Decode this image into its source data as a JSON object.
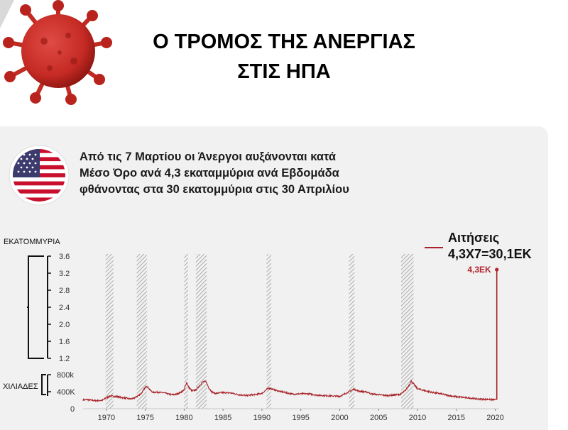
{
  "header": {
    "title_line1": "Ο ΤΡΟΜΟΣ ΤΗΣ ΑΝΕΡΓΙΑΣ",
    "title_line2": "ΣΤΙΣ ΗΠΑ"
  },
  "subtitle": {
    "line1": "Από τις 7 Μαρτίου οι Άνεργοι αυξάνονται κατά",
    "line2": "Μέσο Όρο ανά 4,3 εκαταμμύρια ανά Εβδομάδα",
    "line3": "φθάνοντας στα 30 εκατομμύρια στις 30 Απριλίου"
  },
  "legend": {
    "line1": "Αιτήσεις",
    "line2": "4,3Χ7=30,1ΕΚ"
  },
  "colors": {
    "series": "#a8252b",
    "annotation": "#b3232b",
    "recession_hatch": "#9a9a9a",
    "panel": "#f1f1f1"
  },
  "icons": {
    "virus": "coronavirus-icon",
    "flag": "us-flag-icon"
  },
  "chart_data": {
    "type": "line",
    "title": "Ο ΤΡΟΜΟΣ ΤΗΣ ΑΝΕΡΓΙΑΣ ΣΤΙΣ ΗΠΑ",
    "xlabel": "",
    "ylabel_upper": "ΕΚΑΤΟΜΜΥΡΙΑ",
    "ylabel_lower": "ΧΙΛΙΑΔΕΣ",
    "broken_axis": true,
    "x_ticks": [
      "1970",
      "1975",
      "1980",
      "1985",
      "1990",
      "1995",
      "2000",
      "2005",
      "2010",
      "2015",
      "2020"
    ],
    "x_range": [
      1967,
      2020.5
    ],
    "upper_ticks": [
      "3.6",
      "3.2",
      "2.8",
      "2.4",
      "2.0",
      "1.6",
      "1.2"
    ],
    "upper_tick_values": [
      3.6,
      3.2,
      2.8,
      2.4,
      2.0,
      1.6,
      1.2
    ],
    "upper_ylim": [
      1.2,
      3.6
    ],
    "lower_ticks": [
      "800k",
      "400K",
      "0"
    ],
    "lower_tick_values": [
      800,
      400,
      0
    ],
    "lower_ylim": [
      0,
      800
    ],
    "recessions": [
      [
        1969.9,
        1970.9
      ],
      [
        1973.9,
        1975.2
      ],
      [
        1980.0,
        1980.5
      ],
      [
        1981.5,
        1982.9
      ],
      [
        1990.6,
        1991.2
      ],
      [
        2001.2,
        2001.9
      ],
      [
        2007.9,
        2009.5
      ]
    ],
    "series": [
      {
        "name": "Αιτήσεις",
        "points": [
          [
            1967.0,
            205
          ],
          [
            1967.5,
            215
          ],
          [
            1968.0,
            200
          ],
          [
            1968.5,
            190
          ],
          [
            1969.0,
            190
          ],
          [
            1969.5,
            200
          ],
          [
            1970.0,
            260
          ],
          [
            1970.5,
            300
          ],
          [
            1971.0,
            290
          ],
          [
            1971.5,
            280
          ],
          [
            1972.0,
            260
          ],
          [
            1972.5,
            250
          ],
          [
            1973.0,
            230
          ],
          [
            1973.5,
            240
          ],
          [
            1974.0,
            300
          ],
          [
            1974.5,
            360
          ],
          [
            1974.8,
            450
          ],
          [
            1975.2,
            540
          ],
          [
            1975.6,
            440
          ],
          [
            1976.0,
            380
          ],
          [
            1976.5,
            390
          ],
          [
            1977.0,
            380
          ],
          [
            1977.5,
            370
          ],
          [
            1978.0,
            340
          ],
          [
            1978.5,
            330
          ],
          [
            1979.0,
            340
          ],
          [
            1979.5,
            380
          ],
          [
            1980.0,
            440
          ],
          [
            1980.3,
            620
          ],
          [
            1980.6,
            500
          ],
          [
            1981.0,
            420
          ],
          [
            1981.5,
            440
          ],
          [
            1982.0,
            550
          ],
          [
            1982.4,
            630
          ],
          [
            1982.8,
            640
          ],
          [
            1983.2,
            480
          ],
          [
            1983.6,
            390
          ],
          [
            1984.0,
            360
          ],
          [
            1985.0,
            380
          ],
          [
            1986.0,
            370
          ],
          [
            1987.0,
            330
          ],
          [
            1988.0,
            310
          ],
          [
            1989.0,
            330
          ],
          [
            1990.0,
            360
          ],
          [
            1990.8,
            480
          ],
          [
            1991.2,
            470
          ],
          [
            1991.8,
            430
          ],
          [
            1992.5,
            400
          ],
          [
            1993.0,
            380
          ],
          [
            1994.0,
            340
          ],
          [
            1995.0,
            350
          ],
          [
            1996.0,
            350
          ],
          [
            1997.0,
            320
          ],
          [
            1998.0,
            310
          ],
          [
            1999.0,
            300
          ],
          [
            2000.0,
            290
          ],
          [
            2001.0,
            380
          ],
          [
            2001.8,
            460
          ],
          [
            2002.5,
            410
          ],
          [
            2003.0,
            400
          ],
          [
            2003.6,
            390
          ],
          [
            2004.0,
            350
          ],
          [
            2005.0,
            330
          ],
          [
            2006.0,
            310
          ],
          [
            2007.0,
            320
          ],
          [
            2007.8,
            340
          ],
          [
            2008.4,
            420
          ],
          [
            2008.8,
            520
          ],
          [
            2009.2,
            650
          ],
          [
            2009.6,
            560
          ],
          [
            2010.0,
            470
          ],
          [
            2011.0,
            420
          ],
          [
            2012.0,
            380
          ],
          [
            2013.0,
            350
          ],
          [
            2014.0,
            310
          ],
          [
            2015.0,
            280
          ],
          [
            2016.0,
            265
          ],
          [
            2017.0,
            245
          ],
          [
            2018.0,
            225
          ],
          [
            2019.0,
            220
          ],
          [
            2019.8,
            215
          ],
          [
            2020.1,
            211
          ]
        ],
        "final_value": 3.283
      }
    ],
    "annotations": [
      {
        "label": "4,3ΕΚ",
        "x": 2020.2,
        "value": 3.283
      }
    ]
  }
}
